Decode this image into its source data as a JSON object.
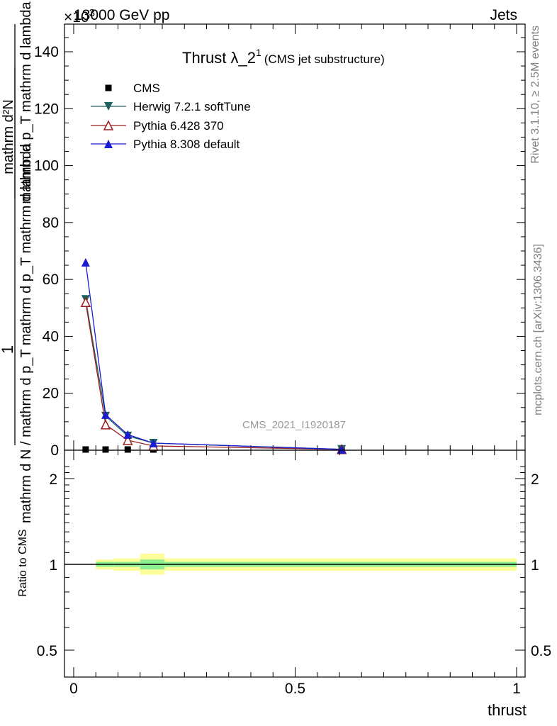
{
  "header": {
    "energy_label": "13000 GeV pp",
    "exponent_label": "×10",
    "exponent_power": "3",
    "process_label": "Jets"
  },
  "side_labels": {
    "rivet": "Rivet 3.1.10, ≥ 2.5M events",
    "mcplots": "mcplots.cern.ch [arXiv:1306.3436]"
  },
  "chart_data": [
    {
      "type": "line",
      "title": "Thrust λ_2",
      "title_superscript": "1",
      "subtitle": "(CMS jet substructure)",
      "analysis_label": "CMS_2021_I1920187",
      "ylabel_parts": [
        "1",
        "mathrm d N / mathrm d p_T mathrm d p_T mathrm d lambda",
        "mathrm d²N",
        "mathrm d p_T mathrm d lambda"
      ],
      "xlabel": "",
      "xlim": [
        0,
        1
      ],
      "ylim": [
        0,
        150
      ],
      "y_ticks": [
        0,
        20,
        40,
        60,
        80,
        100,
        120,
        140
      ],
      "y_tick_labels": [
        "0",
        "20",
        "40",
        "60",
        "80",
        "100",
        "120",
        "140"
      ],
      "legend_position": "top-left",
      "series": [
        {
          "name": "CMS",
          "marker": "square",
          "color": "#000000",
          "x": [
            0.027,
            0.072,
            0.122,
            0.18,
            0.605
          ],
          "y": [
            0.05,
            0.05,
            0.05,
            0.05,
            0.05
          ]
        },
        {
          "name": "Herwig 7.2.1 softTune",
          "marker": "triangle-down",
          "color": "#1f5f5f",
          "x": [
            0.027,
            0.072,
            0.122,
            0.18,
            0.605
          ],
          "y": [
            53,
            12,
            5,
            2.5,
            0.3
          ]
        },
        {
          "name": "Pythia 6.428 370",
          "marker": "triangle-up-open",
          "color": "#9b1c1c",
          "x": [
            0.027,
            0.072,
            0.122,
            0.18,
            0.605
          ],
          "y": [
            52,
            9,
            3.5,
            1.5,
            0.3
          ]
        },
        {
          "name": "Pythia 8.308 default",
          "marker": "triangle-up",
          "color": "#1b1bd0",
          "x": [
            0.027,
            0.072,
            0.122,
            0.18,
            0.605
          ],
          "y": [
            66,
            12.5,
            5.5,
            2.5,
            0.3
          ]
        }
      ]
    },
    {
      "type": "area",
      "ylabel": "Ratio to CMS",
      "xlabel": "thrust",
      "xlim": [
        0,
        1
      ],
      "ylim": [
        0.4,
        2.3
      ],
      "y_scale": "log",
      "x_ticks": [
        0,
        0.5,
        1
      ],
      "x_tick_labels": [
        "0",
        "0.5",
        "1"
      ],
      "y_ticks": [
        0.5,
        1,
        2
      ],
      "y_tick_labels": [
        "0.5",
        "1",
        "2"
      ],
      "reference": 1,
      "bands": {
        "bin_edges": [
          0.05,
          0.09,
          0.15,
          0.205,
          1.0
        ],
        "outer_low": [
          0.96,
          0.95,
          0.92,
          0.95
        ],
        "outer_high": [
          1.04,
          1.05,
          1.09,
          1.05
        ],
        "inner_low": [
          0.98,
          0.98,
          0.96,
          0.98
        ],
        "inner_high": [
          1.02,
          1.02,
          1.04,
          1.02
        ],
        "outer_color": "#fdfd9a",
        "inner_color": "#8ef08e"
      }
    }
  ]
}
